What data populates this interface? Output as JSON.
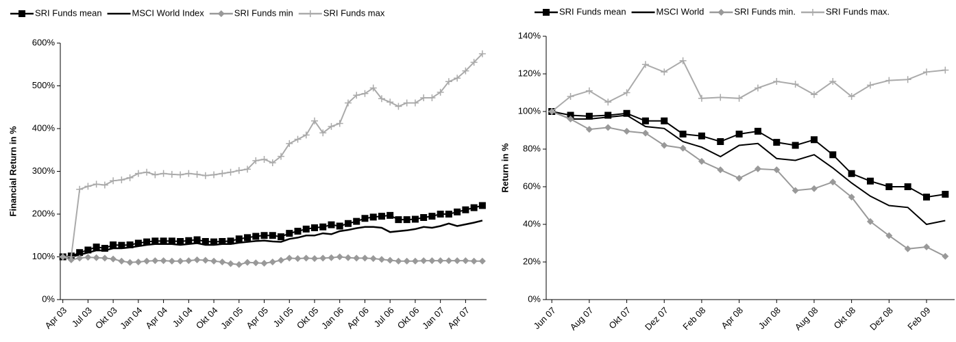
{
  "chart_data": [
    {
      "type": "line",
      "y_label": "Financial Return in %",
      "categories": [
        "Apr 03",
        null,
        null,
        "Jul 03",
        null,
        null,
        "Okt 03",
        null,
        null,
        "Jan 04",
        null,
        null,
        "Apr 04",
        null,
        null,
        "Jul 04",
        null,
        null,
        "Okt 04",
        null,
        null,
        "Jan 05",
        null,
        null,
        "Apr 05",
        null,
        null,
        "Jul 05",
        null,
        null,
        "Okt 05",
        null,
        null,
        "Jan 06",
        null,
        null,
        "Apr 06",
        null,
        null,
        "Jul 06",
        null,
        null,
        "Okt 06",
        null,
        null,
        "Jan 07",
        null,
        null,
        "Apr 07",
        null,
        null
      ],
      "ylim": [
        0,
        600
      ],
      "yticks": [
        {
          "value": 0,
          "label": "0%"
        },
        {
          "value": 100,
          "label": "100%"
        },
        {
          "value": 200,
          "label": "200%"
        },
        {
          "value": 300,
          "label": "300%"
        },
        {
          "value": 400,
          "label": "400%"
        },
        {
          "value": 500,
          "label": "500%"
        },
        {
          "value": 600,
          "label": "600%"
        }
      ],
      "grid": false,
      "series": [
        {
          "name": "SRI Funds mean",
          "color": "#000000",
          "marker": "square",
          "width": 2,
          "values": [
            100,
            102,
            110,
            116,
            123,
            120,
            128,
            127,
            128,
            132,
            135,
            137,
            137,
            137,
            136,
            138,
            140,
            136,
            135,
            136,
            137,
            142,
            145,
            148,
            150,
            150,
            147,
            155,
            160,
            165,
            168,
            170,
            175,
            172,
            178,
            183,
            190,
            193,
            195,
            197,
            187,
            187,
            188,
            192,
            195,
            200,
            200,
            205,
            210,
            215,
            220
          ]
        },
        {
          "name": "MSCI World Index",
          "color": "#000000",
          "marker": "none",
          "width": 2.5,
          "values": [
            100,
            100,
            105,
            110,
            115,
            115,
            120,
            120,
            122,
            125,
            128,
            130,
            130,
            130,
            128,
            130,
            132,
            128,
            128,
            130,
            130,
            133,
            135,
            137,
            138,
            136,
            135,
            142,
            145,
            150,
            150,
            155,
            153,
            160,
            163,
            167,
            170,
            170,
            168,
            158,
            160,
            162,
            165,
            170,
            168,
            172,
            178,
            172,
            176,
            180,
            185
          ]
        },
        {
          "name": "SRI Funds min",
          "color": "#999999",
          "marker": "diamond",
          "width": 2,
          "values": [
            100,
            93,
            97,
            99,
            98,
            97,
            95,
            90,
            87,
            88,
            90,
            91,
            91,
            90,
            90,
            91,
            93,
            92,
            90,
            88,
            84,
            82,
            87,
            86,
            85,
            88,
            92,
            97,
            96,
            97,
            96,
            97,
            98,
            100,
            98,
            97,
            97,
            96,
            94,
            92,
            90,
            90,
            90,
            91,
            91,
            91,
            91,
            91,
            91,
            90,
            90
          ]
        },
        {
          "name": "SRI Funds max",
          "color": "#aaaaaa",
          "marker": "plus",
          "width": 2,
          "values": [
            100,
            100,
            258,
            265,
            270,
            268,
            278,
            280,
            285,
            295,
            298,
            292,
            295,
            293,
            292,
            295,
            293,
            290,
            292,
            295,
            298,
            302,
            305,
            325,
            328,
            320,
            335,
            365,
            375,
            385,
            418,
            390,
            405,
            412,
            460,
            478,
            482,
            495,
            470,
            462,
            452,
            460,
            460,
            472,
            472,
            485,
            510,
            518,
            535,
            555,
            575
          ]
        }
      ]
    },
    {
      "type": "line",
      "y_label": "Return in %",
      "categories": [
        "Jun 07",
        null,
        "Aug 07",
        null,
        "Okt 07",
        null,
        "Dez 07",
        null,
        "Feb 08",
        null,
        "Apr 08",
        null,
        "Jun 08",
        null,
        "Aug 08",
        null,
        "Okt 08",
        null,
        "Dez 08",
        null,
        "Feb 09",
        null
      ],
      "ylim": [
        0,
        140
      ],
      "yticks": [
        {
          "value": 0,
          "label": "0%"
        },
        {
          "value": 20,
          "label": "20%"
        },
        {
          "value": 40,
          "label": "40%"
        },
        {
          "value": 60,
          "label": "60%"
        },
        {
          "value": 80,
          "label": "80%"
        },
        {
          "value": 100,
          "label": "100%"
        },
        {
          "value": 120,
          "label": "120%"
        },
        {
          "value": 140,
          "label": "140%"
        }
      ],
      "grid": false,
      "series": [
        {
          "name": "SRI Funds mean",
          "color": "#000000",
          "marker": "square",
          "width": 2,
          "values": [
            100,
            98,
            97.5,
            98,
            99,
            95,
            95,
            88,
            87,
            84,
            88,
            89.5,
            83.6,
            82,
            85,
            77,
            67,
            63,
            60,
            60,
            54.5,
            56
          ]
        },
        {
          "name": "MSCI World",
          "color": "#000000",
          "marker": "none",
          "width": 2,
          "values": [
            100,
            96,
            96,
            97,
            98,
            92,
            91,
            84,
            81,
            76,
            82,
            83,
            75,
            74,
            77,
            70,
            62,
            55,
            50,
            49,
            40,
            42
          ]
        },
        {
          "name": "SRI Funds min.",
          "color": "#999999",
          "marker": "diamond",
          "width": 2,
          "values": [
            100,
            96,
            90.5,
            91.5,
            89.5,
            88.5,
            82,
            80.5,
            73.5,
            69,
            64.5,
            69.5,
            69,
            58,
            59,
            62.5,
            54.5,
            41.5,
            34,
            27,
            28,
            23
          ]
        },
        {
          "name": "SRI Funds max.",
          "color": "#aaaaaa",
          "marker": "plus",
          "width": 2,
          "values": [
            100,
            108,
            111,
            105,
            110,
            125,
            121,
            127,
            107,
            107.5,
            107,
            112.5,
            116,
            114.5,
            109,
            116,
            108,
            114,
            116.5,
            117,
            121,
            122
          ]
        }
      ]
    }
  ]
}
